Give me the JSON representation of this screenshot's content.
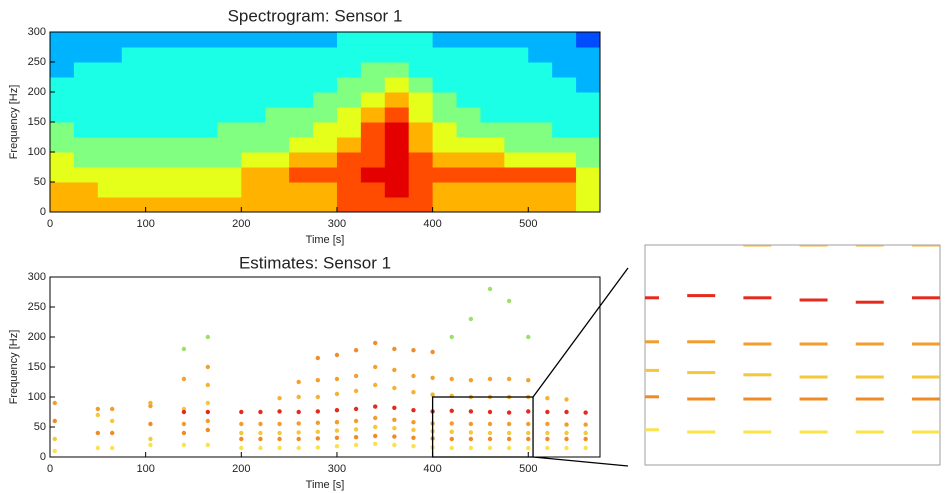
{
  "chart_data": [
    {
      "type": "heatmap",
      "title": "Spectrogram: Sensor 1",
      "x_label": "Time [s]",
      "y_label": "Frequency [Hz]",
      "xlim": [
        0,
        575
      ],
      "xticks": [
        0,
        100,
        200,
        300,
        400,
        500
      ],
      "ylim": [
        0,
        300
      ],
      "yticks": [
        0,
        50,
        100,
        150,
        200,
        250,
        300
      ],
      "colormap": "jet",
      "clim": [
        0,
        10
      ],
      "values": [
        [
          7,
          7,
          7,
          7,
          7,
          7,
          7,
          7,
          7,
          7,
          7,
          7,
          8,
          8,
          8,
          8,
          7,
          7,
          7,
          7,
          7,
          7,
          6
        ],
        [
          7,
          7,
          6,
          6,
          6,
          6,
          6,
          6,
          7,
          7,
          7,
          7,
          8,
          8,
          9,
          8,
          7,
          7,
          7,
          7,
          7,
          7,
          6
        ],
        [
          6,
          6,
          6,
          6,
          6,
          6,
          6,
          6,
          7,
          7,
          8,
          8,
          8,
          9,
          9,
          8,
          8,
          8,
          8,
          8,
          8,
          8,
          6
        ],
        [
          6,
          5,
          5,
          5,
          5,
          5,
          5,
          5,
          6,
          6,
          7,
          7,
          8,
          8,
          9,
          8,
          7,
          7,
          7,
          6,
          6,
          6,
          5
        ],
        [
          5,
          5,
          5,
          5,
          5,
          5,
          5,
          5,
          5,
          5,
          6,
          6,
          7,
          8,
          9,
          7,
          6,
          6,
          6,
          5,
          5,
          5,
          5
        ],
        [
          5,
          4,
          4,
          4,
          4,
          4,
          4,
          5,
          5,
          5,
          5,
          6,
          6,
          8,
          9,
          7,
          6,
          5,
          5,
          5,
          5,
          4,
          4
        ],
        [
          4,
          4,
          4,
          4,
          4,
          4,
          4,
          4,
          4,
          5,
          5,
          5,
          6,
          7,
          8,
          6,
          5,
          5,
          4,
          4,
          4,
          4,
          4
        ],
        [
          4,
          4,
          4,
          4,
          4,
          4,
          4,
          4,
          4,
          4,
          4,
          5,
          5,
          6,
          7,
          6,
          5,
          4,
          4,
          4,
          4,
          4,
          4
        ],
        [
          4,
          4,
          4,
          4,
          4,
          4,
          4,
          4,
          4,
          4,
          4,
          4,
          5,
          5,
          6,
          5,
          4,
          4,
          4,
          4,
          4,
          4,
          3
        ],
        [
          3,
          4,
          4,
          4,
          4,
          4,
          4,
          4,
          4,
          4,
          4,
          4,
          4,
          5,
          5,
          4,
          4,
          4,
          4,
          4,
          4,
          3,
          3
        ],
        [
          3,
          3,
          3,
          4,
          4,
          4,
          4,
          4,
          4,
          4,
          4,
          4,
          4,
          4,
          4,
          4,
          4,
          4,
          4,
          4,
          3,
          3,
          3
        ],
        [
          3,
          3,
          3,
          3,
          3,
          3,
          3,
          3,
          3,
          3,
          3,
          3,
          4,
          4,
          4,
          4,
          3,
          3,
          3,
          3,
          3,
          3,
          2
        ]
      ]
    },
    {
      "type": "scatter",
      "title": "Estimates: Sensor 1",
      "x_label": "Time [s]",
      "y_label": "Frequency [Hz]",
      "xlim": [
        0,
        575
      ],
      "xticks": [
        0,
        100,
        200,
        300,
        400,
        500
      ],
      "ylim": [
        0,
        300
      ],
      "yticks": [
        0,
        50,
        100,
        150,
        200,
        250,
        300
      ],
      "x": [
        5,
        50,
        65,
        105,
        140,
        165,
        200,
        220,
        240,
        260,
        280,
        300,
        320,
        340,
        360,
        380,
        400,
        420,
        440,
        460,
        480,
        500,
        520,
        540,
        560
      ],
      "series": [
        {
          "color": "#f9e24a",
          "values": [
            10,
            15,
            15,
            20,
            20,
            20,
            15,
            15,
            15,
            15,
            16,
            18,
            20,
            22,
            20,
            18,
            16,
            15,
            15,
            15,
            15,
            15,
            15,
            15,
            15
          ]
        },
        {
          "color": "#f08a24",
          "values": [
            60,
            40,
            40,
            55,
            40,
            45,
            30,
            30,
            30,
            30,
            31,
            32,
            33,
            35,
            34,
            32,
            31,
            30,
            30,
            30,
            30,
            30,
            30,
            30,
            30
          ]
        },
        {
          "color": "#f4c83a",
          "values": [
            30,
            70,
            60,
            30,
            80,
            90,
            40,
            40,
            40,
            41,
            42,
            44,
            46,
            50,
            48,
            45,
            43,
            42,
            41,
            40,
            40,
            40,
            40,
            40,
            40
          ]
        },
        {
          "color": "#f39c2c",
          "values": [
            90,
            80,
            80,
            85,
            55,
            60,
            55,
            55,
            55,
            56,
            57,
            58,
            60,
            65,
            62,
            58,
            56,
            56,
            55,
            55,
            55,
            55,
            55,
            54,
            54
          ]
        },
        {
          "color": "#e42a1c",
          "values": [
            null,
            null,
            null,
            null,
            75,
            75,
            75,
            75,
            76,
            75,
            76,
            78,
            80,
            84,
            82,
            78,
            76,
            77,
            76,
            75,
            74,
            76,
            75,
            75,
            74
          ]
        },
        {
          "color": "#f6b130",
          "values": [
            null,
            null,
            null,
            90,
            null,
            120,
            null,
            null,
            98,
            100,
            100,
            105,
            110,
            120,
            115,
            108,
            104,
            102,
            100,
            100,
            100,
            100,
            98,
            96,
            null
          ]
        },
        {
          "color": "#f2a02e",
          "values": [
            null,
            null,
            null,
            null,
            130,
            150,
            null,
            null,
            null,
            125,
            128,
            130,
            135,
            150,
            145,
            135,
            132,
            130,
            128,
            130,
            130,
            128,
            null,
            null,
            null
          ]
        },
        {
          "color": "#f08c2a",
          "values": [
            null,
            null,
            null,
            null,
            null,
            null,
            null,
            null,
            null,
            null,
            165,
            170,
            178,
            190,
            180,
            178,
            175,
            null,
            null,
            null,
            null,
            null,
            null,
            null,
            null
          ]
        },
        {
          "color": "#9ce06b",
          "values": [
            null,
            null,
            null,
            null,
            180,
            200,
            null,
            null,
            null,
            null,
            null,
            null,
            null,
            null,
            null,
            null,
            null,
            200,
            230,
            280,
            260,
            200,
            null,
            null,
            null
          ]
        }
      ],
      "inset": {
        "xlim": [
          400,
          505
        ],
        "ylim": [
          0,
          100
        ]
      }
    }
  ]
}
